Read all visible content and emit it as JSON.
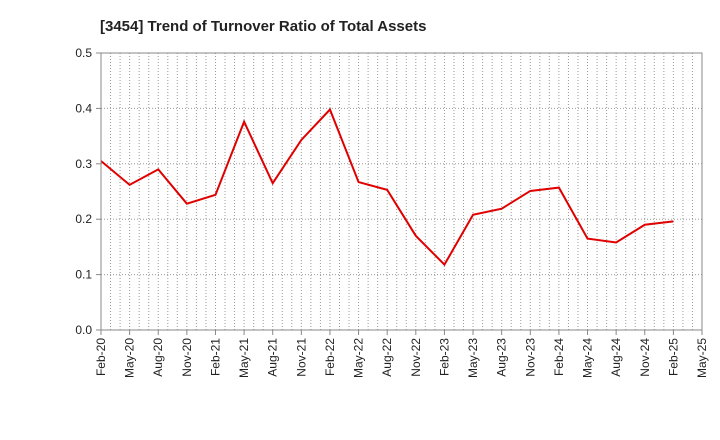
{
  "chart_data": {
    "type": "line",
    "title": "[3454]  Trend of Turnover Ratio of Total Assets",
    "xlabel": "",
    "ylabel": "",
    "ylim": [
      0,
      0.5
    ],
    "yticks": [
      "0.0",
      "0.1",
      "0.2",
      "0.3",
      "0.4",
      "0.5"
    ],
    "x_tick_labels": [
      "Feb-20",
      "May-20",
      "Aug-20",
      "Nov-20",
      "Feb-21",
      "May-21",
      "Aug-21",
      "Nov-21",
      "Feb-22",
      "May-22",
      "Aug-22",
      "Nov-22",
      "Feb-23",
      "May-23",
      "Aug-23",
      "Nov-23",
      "Feb-24",
      "May-24",
      "Aug-24",
      "Nov-24",
      "Feb-25",
      "May-25"
    ],
    "grid": true,
    "legend": "none",
    "series": [
      {
        "color": "#e00000",
        "x": [
          "Feb-20",
          "May-20",
          "Aug-20",
          "Nov-20",
          "Feb-21",
          "May-21",
          "Aug-21",
          "Nov-21",
          "Feb-22",
          "May-22",
          "Aug-22",
          "Nov-22",
          "Feb-23",
          "May-23",
          "Aug-23",
          "Nov-23",
          "Feb-24",
          "May-24",
          "Aug-24",
          "Nov-24",
          "Feb-25"
        ],
        "values": [
          0.305,
          0.262,
          0.29,
          0.228,
          0.244,
          0.376,
          0.265,
          0.343,
          0.398,
          0.267,
          0.253,
          0.17,
          0.118,
          0.208,
          0.219,
          0.251,
          0.257,
          0.165,
          0.158,
          0.19,
          0.196
        ]
      }
    ]
  }
}
